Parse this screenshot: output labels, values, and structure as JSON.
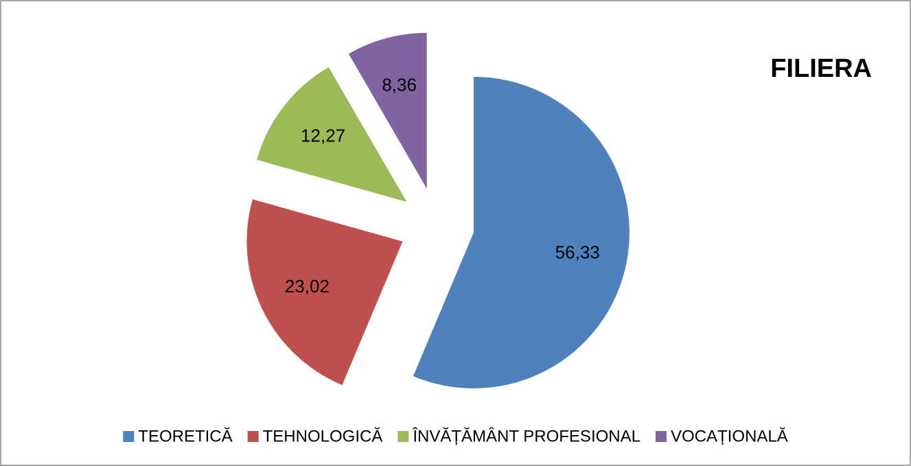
{
  "chart_data": {
    "type": "pie",
    "title": "FILIERA",
    "categories": [
      "TEORETICĂ",
      "TEHNOLOGICĂ",
      "ÎNVĂȚĂMÂNT PROFESIONAL",
      "VOCAȚIONALĂ"
    ],
    "values": [
      56.33,
      23.02,
      12.27,
      8.36
    ],
    "value_labels": [
      "56,33",
      "23,02",
      "12,27",
      "8,36"
    ],
    "colors": [
      "#4f81bd",
      "#c0504d",
      "#9bbb59",
      "#8064a2"
    ],
    "legend": "bottom"
  }
}
